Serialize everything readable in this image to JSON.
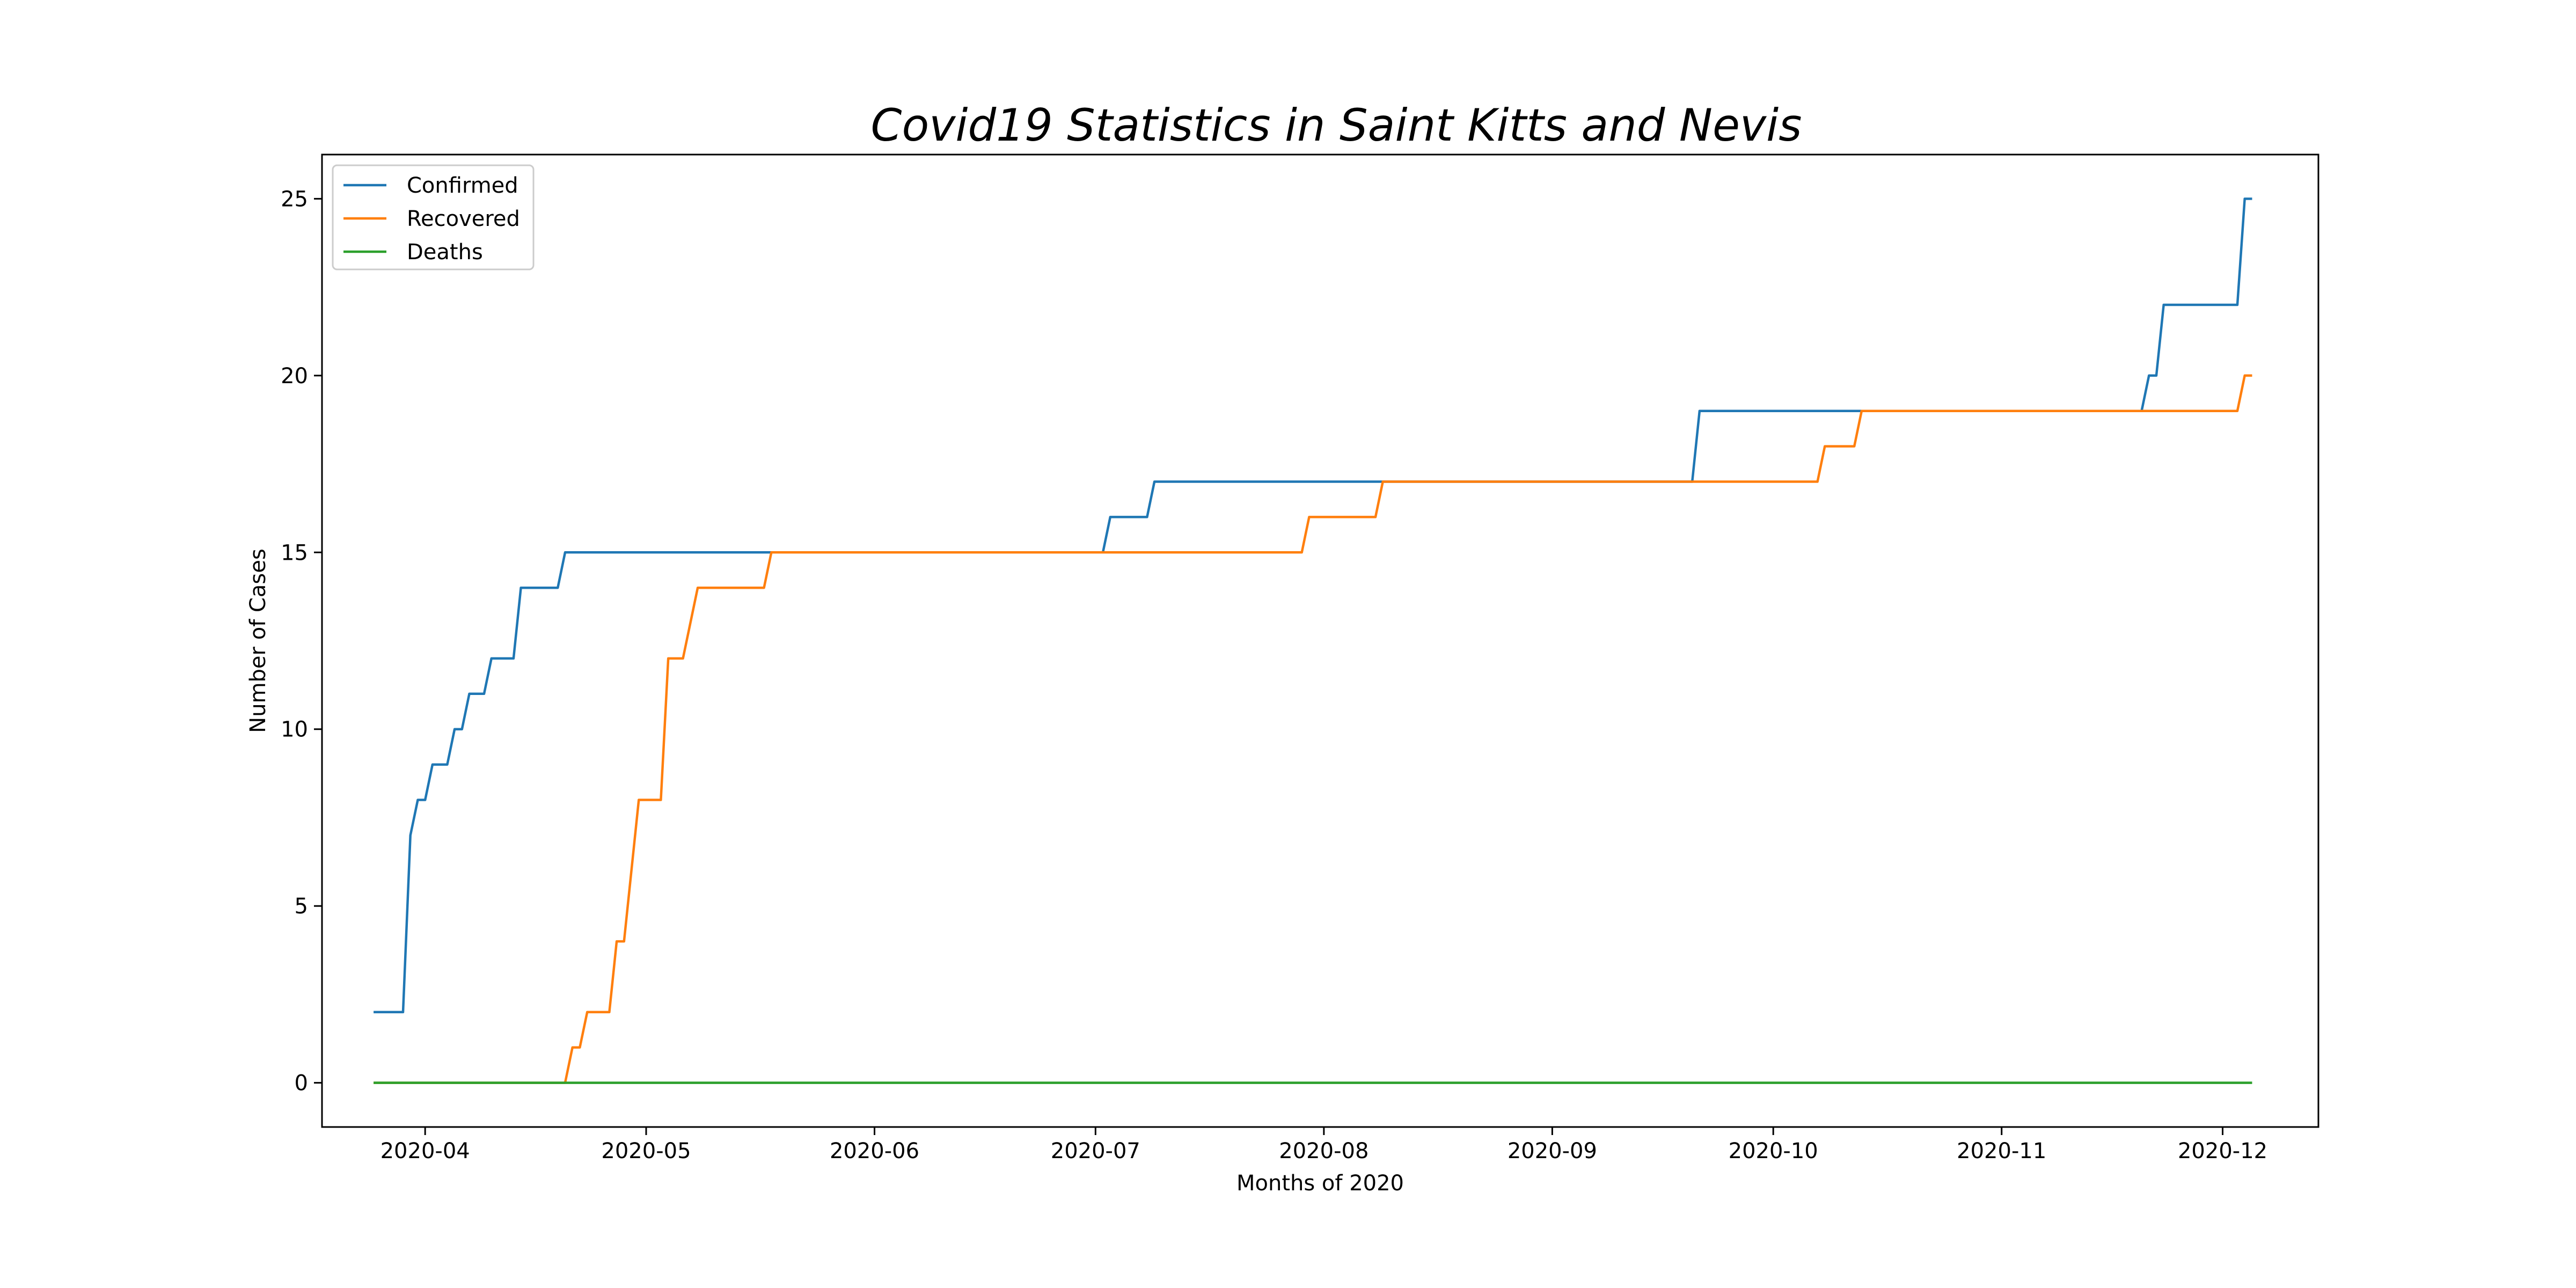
{
  "chart_data": {
    "type": "line",
    "title": "Covid19 Statistics in Saint Kitts and Nevis",
    "xlabel": "Months of 2020",
    "ylabel": "Number of Cases",
    "x_type": "date",
    "xlim": [
      "2020-03-18",
      "2020-12-14"
    ],
    "ylim": [
      -1.25,
      26.25
    ],
    "x_ticks": [
      "2020-04-01",
      "2020-05-01",
      "2020-06-01",
      "2020-07-01",
      "2020-08-01",
      "2020-09-01",
      "2020-10-01",
      "2020-11-01",
      "2020-12-01"
    ],
    "x_tick_labels": [
      "2020-04",
      "2020-05",
      "2020-06",
      "2020-07",
      "2020-08",
      "2020-09",
      "2020-10",
      "2020-11",
      "2020-12"
    ],
    "y_ticks": [
      0,
      5,
      10,
      15,
      20,
      25
    ],
    "y_tick_labels": [
      "0",
      "5",
      "10",
      "15",
      "20",
      "25"
    ],
    "grid": false,
    "legend_position": "upper-left",
    "series": [
      {
        "name": "Confirmed",
        "color": "#1f77b4",
        "points": [
          [
            "2020-03-25",
            2
          ],
          [
            "2020-03-29",
            2
          ],
          [
            "2020-03-30",
            7
          ],
          [
            "2020-03-31",
            8
          ],
          [
            "2020-04-01",
            8
          ],
          [
            "2020-04-02",
            9
          ],
          [
            "2020-04-04",
            9
          ],
          [
            "2020-04-05",
            10
          ],
          [
            "2020-04-06",
            10
          ],
          [
            "2020-04-07",
            11
          ],
          [
            "2020-04-09",
            11
          ],
          [
            "2020-04-10",
            12
          ],
          [
            "2020-04-13",
            12
          ],
          [
            "2020-04-14",
            14
          ],
          [
            "2020-04-19",
            14
          ],
          [
            "2020-04-20",
            15
          ],
          [
            "2020-07-02",
            15
          ],
          [
            "2020-07-03",
            16
          ],
          [
            "2020-07-08",
            16
          ],
          [
            "2020-07-09",
            17
          ],
          [
            "2020-09-20",
            17
          ],
          [
            "2020-09-21",
            19
          ],
          [
            "2020-11-20",
            19
          ],
          [
            "2020-11-21",
            20
          ],
          [
            "2020-11-22",
            20
          ],
          [
            "2020-11-23",
            22
          ],
          [
            "2020-12-03",
            22
          ],
          [
            "2020-12-04",
            25
          ],
          [
            "2020-12-05",
            25
          ]
        ]
      },
      {
        "name": "Recovered",
        "color": "#ff7f0e",
        "points": [
          [
            "2020-03-25",
            0
          ],
          [
            "2020-04-20",
            0
          ],
          [
            "2020-04-21",
            1
          ],
          [
            "2020-04-22",
            1
          ],
          [
            "2020-04-23",
            2
          ],
          [
            "2020-04-26",
            2
          ],
          [
            "2020-04-27",
            4
          ],
          [
            "2020-04-28",
            4
          ],
          [
            "2020-04-30",
            8
          ],
          [
            "2020-05-03",
            8
          ],
          [
            "2020-05-04",
            12
          ],
          [
            "2020-05-06",
            12
          ],
          [
            "2020-05-08",
            14
          ],
          [
            "2020-05-17",
            14
          ],
          [
            "2020-05-18",
            15
          ],
          [
            "2020-07-29",
            15
          ],
          [
            "2020-07-30",
            16
          ],
          [
            "2020-08-08",
            16
          ],
          [
            "2020-08-09",
            17
          ],
          [
            "2020-10-07",
            17
          ],
          [
            "2020-10-08",
            18
          ],
          [
            "2020-10-12",
            18
          ],
          [
            "2020-10-13",
            19
          ],
          [
            "2020-12-03",
            19
          ],
          [
            "2020-12-04",
            20
          ],
          [
            "2020-12-05",
            20
          ]
        ]
      },
      {
        "name": "Deaths",
        "color": "#2ca02c",
        "points": [
          [
            "2020-03-25",
            0
          ],
          [
            "2020-12-05",
            0
          ]
        ]
      }
    ]
  }
}
